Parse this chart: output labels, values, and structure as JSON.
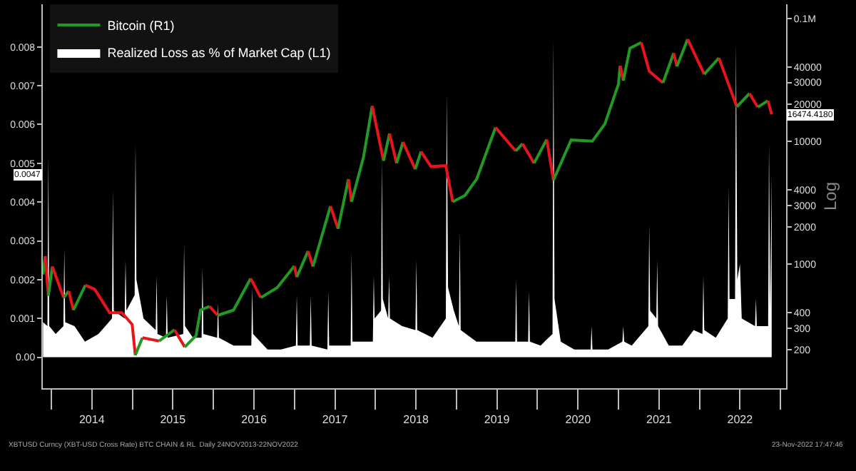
{
  "chart_data": {
    "type": "line",
    "y2label": "Log",
    "xlim": [
      "2013-11-23",
      "2023-01-26"
    ],
    "xticks": [
      {
        "value": "2014-01-01",
        "label": null
      },
      {
        "value": "2014-07-02",
        "label": "2014"
      },
      {
        "value": "2015-01-01",
        "label": null
      },
      {
        "value": "2015-07-02",
        "label": "2015"
      },
      {
        "value": "2016-01-01",
        "label": null
      },
      {
        "value": "2016-07-02",
        "label": "2016"
      },
      {
        "value": "2017-01-01",
        "label": null
      },
      {
        "value": "2017-07-02",
        "label": "2017"
      },
      {
        "value": "2018-01-01",
        "label": null
      },
      {
        "value": "2018-07-02",
        "label": "2018"
      },
      {
        "value": "2019-01-01",
        "label": null
      },
      {
        "value": "2019-07-02",
        "label": "2019"
      },
      {
        "value": "2020-01-01",
        "label": null
      },
      {
        "value": "2020-07-02",
        "label": "2020"
      },
      {
        "value": "2021-01-01",
        "label": null
      },
      {
        "value": "2021-07-02",
        "label": "2021"
      },
      {
        "value": "2022-01-01",
        "label": null
      },
      {
        "value": "2022-07-02",
        "label": "2022"
      },
      {
        "value": "2023-01-01",
        "label": null
      }
    ],
    "ylim": [
      -0.0008,
      0.0091
    ],
    "yticks": [
      {
        "value": 0,
        "label": "0.00"
      },
      0.001,
      0.002,
      0.003,
      0.004,
      0.005,
      0.006,
      0.007,
      0.008
    ],
    "y2lim": [
      97,
      130000
    ],
    "y2ticks": [
      200,
      300,
      400,
      1000,
      2000,
      3000,
      4000,
      10000,
      20000,
      30000,
      40000,
      {
        "value": 100000,
        "label": "0.1M"
      }
    ],
    "log": "y2",
    "grid": false,
    "legend": "top left",
    "series": [
      {
        "name": "Realized Loss as % of Market Cap (L1)",
        "type": "area",
        "color": "#ffffff",
        "x": [
          "2013-11-24",
          "2013-12-14",
          "2013-12-18",
          "2013-12-22",
          "2014-01-20",
          "2014-02-24",
          "2014-02-28",
          "2014-03-04",
          "2014-04-15",
          "2014-06-01",
          "2014-08-01",
          "2014-10-01",
          "2014-10-05",
          "2014-10-09",
          "2014-11-27",
          "2014-12-01",
          "2014-12-05",
          "2015-01-11",
          "2015-01-15",
          "2015-01-19",
          "2015-02-20",
          "2015-04-16",
          "2015-04-20",
          "2015-04-24",
          "2015-06-01",
          "2015-06-05",
          "2015-06-09",
          "2015-08-18",
          "2015-08-22",
          "2015-08-26",
          "2015-10-01",
          "2015-11-09",
          "2015-11-13",
          "2015-11-17",
          "2016-01-18",
          "2016-01-22",
          "2016-01-26",
          "2016-04-01",
          "2016-06-20",
          "2016-06-24",
          "2016-06-28",
          "2016-09-01",
          "2016-11-01",
          "2017-01-07",
          "2017-01-11",
          "2017-01-15",
          "2017-03-11",
          "2017-03-15",
          "2017-03-19",
          "2017-05-29",
          "2017-06-02",
          "2017-06-06",
          "2017-09-11",
          "2017-09-15",
          "2017-09-19",
          "2017-12-20",
          "2017-12-24",
          "2017-12-28",
          "2018-01-26",
          "2018-01-30",
          "2018-02-03",
          "2018-02-27",
          "2018-03-03",
          "2018-03-07",
          "2018-05-01",
          "2018-06-30",
          "2018-07-04",
          "2018-07-08",
          "2018-09-15",
          "2018-11-14",
          "2018-11-18",
          "2018-11-24",
          "2018-12-20",
          "2019-01-12",
          "2019-01-16",
          "2019-01-20",
          "2019-04-01",
          "2019-07-01",
          "2019-09-23",
          "2019-09-27",
          "2019-10-01",
          "2019-11-20",
          "2019-11-24",
          "2019-11-28",
          "2020-01-15",
          "2020-03-09",
          "2020-03-13",
          "2020-03-18",
          "2020-04-15",
          "2020-06-15",
          "2020-08-28",
          "2020-09-01",
          "2020-09-05",
          "2020-11-15",
          "2021-01-18",
          "2021-01-22",
          "2021-01-26",
          "2021-03-01",
          "2021-05-15",
          "2021-05-19",
          "2021-05-23",
          "2021-06-20",
          "2021-06-24",
          "2021-06-28",
          "2021-08-15",
          "2021-10-15",
          "2021-12-05",
          "2022-01-14",
          "2022-01-18",
          "2022-01-22",
          "2022-03-15",
          "2022-05-08",
          "2022-05-12",
          "2022-05-16",
          "2022-06-10",
          "2022-06-14",
          "2022-06-20",
          "2022-07-02",
          "2022-07-10",
          "2022-09-08",
          "2022-09-12",
          "2022-09-16",
          "2022-11-06",
          "2022-11-10",
          "2022-11-15",
          "2022-11-22"
        ],
        "values": [
          0.0009,
          0.0008,
          0.0052,
          0.0008,
          0.0006,
          0.0008,
          0.0028,
          0.0009,
          0.0008,
          0.0004,
          0.0006,
          0.001,
          0.0043,
          0.0012,
          0.001,
          0.0025,
          0.0012,
          0.0016,
          0.0055,
          0.002,
          0.001,
          0.0007,
          0.0021,
          0.0006,
          0.0005,
          0.0016,
          0.0005,
          0.0006,
          0.0029,
          0.0008,
          0.0005,
          0.0005,
          0.0023,
          0.0006,
          0.0005,
          0.0014,
          0.0005,
          0.0003,
          0.0003,
          0.0018,
          0.0006,
          0.0002,
          0.0002,
          0.0003,
          0.0016,
          0.0003,
          0.0003,
          0.0016,
          0.0003,
          0.0002,
          0.0017,
          0.0003,
          0.0003,
          0.0027,
          0.0004,
          0.0004,
          0.0021,
          0.001,
          0.0012,
          0.0051,
          0.0015,
          0.001,
          0.0021,
          0.001,
          0.0008,
          0.0007,
          0.0025,
          0.0007,
          0.0005,
          0.001,
          0.0068,
          0.0018,
          0.0012,
          0.0008,
          0.0032,
          0.0007,
          0.0004,
          0.0004,
          0.0004,
          0.002,
          0.0004,
          0.0004,
          0.0017,
          0.0004,
          0.0003,
          0.0006,
          0.0082,
          0.0015,
          0.0004,
          0.0002,
          0.0002,
          0.0008,
          0.0002,
          0.0002,
          0.0004,
          0.0008,
          0.0004,
          0.0003,
          0.0008,
          0.0034,
          0.0012,
          0.001,
          0.0025,
          0.0008,
          0.0003,
          0.0003,
          0.0007,
          0.0006,
          0.0021,
          0.0007,
          0.0005,
          0.001,
          0.0044,
          0.0015,
          0.0015,
          0.0081,
          0.002,
          0.0024,
          0.001,
          0.0008,
          0.0015,
          0.0008,
          0.0008,
          0.0055,
          0.0012,
          0.0047
        ]
      },
      {
        "name": "Bitcoin (R1)",
        "axis": "y2",
        "color": "#229922",
        "x": [
          "2013-11-24",
          "2013-12-04"
        ],
        "values": [
          820,
          1150
        ]
      },
      {
        "axis": "y2",
        "color": "#e8141a",
        "x": [
          "2013-12-04",
          "2013-12-18"
        ],
        "values": [
          1150,
          550
        ]
      },
      {
        "axis": "y2",
        "color": "#229922",
        "x": [
          "2013-12-18",
          "2014-01-05"
        ],
        "values": [
          550,
          950
        ]
      },
      {
        "axis": "y2",
        "color": "#e8141a",
        "x": [
          "2014-01-05",
          "2014-02-25"
        ],
        "values": [
          950,
          530
        ]
      },
      {
        "axis": "y2",
        "color": "#229922",
        "x": [
          "2014-02-25",
          "2014-03-20"
        ],
        "values": [
          530,
          600
        ]
      },
      {
        "axis": "y2",
        "color": "#e8141a",
        "x": [
          "2014-03-20",
          "2014-04-10"
        ],
        "values": [
          600,
          420
        ]
      },
      {
        "axis": "y2",
        "color": "#229922",
        "x": [
          "2014-04-10",
          "2014-06-03"
        ],
        "values": [
          420,
          670
        ]
      },
      {
        "axis": "y2",
        "color": "#e8141a",
        "x": [
          "2014-06-03",
          "2014-07-15",
          "2014-09-20",
          "2014-11-15",
          "2014-12-31",
          "2015-01-14"
        ],
        "values": [
          670,
          620,
          400,
          400,
          320,
          180
        ]
      },
      {
        "axis": "y2",
        "color": "#229922",
        "x": [
          "2015-01-14",
          "2015-02-15"
        ],
        "values": [
          180,
          250
        ]
      },
      {
        "axis": "y2",
        "color": "#e8141a",
        "x": [
          "2015-02-15",
          "2015-05-01"
        ],
        "values": [
          250,
          235
        ]
      },
      {
        "axis": "y2",
        "color": "#229922",
        "x": [
          "2015-05-01",
          "2015-07-10"
        ],
        "values": [
          235,
          290
        ]
      },
      {
        "axis": "y2",
        "color": "#e8141a",
        "x": [
          "2015-07-10",
          "2015-08-25"
        ],
        "values": [
          290,
          210
        ]
      },
      {
        "axis": "y2",
        "color": "#229922",
        "x": [
          "2015-08-25",
          "2015-10-15",
          "2015-11-04",
          "2015-12-15"
        ],
        "values": [
          210,
          260,
          420,
          450
        ]
      },
      {
        "axis": "y2",
        "color": "#e8141a",
        "x": [
          "2015-12-15",
          "2016-01-20"
        ],
        "values": [
          450,
          380
        ]
      },
      {
        "axis": "y2",
        "color": "#229922",
        "x": [
          "2016-01-20",
          "2016-04-01",
          "2016-06-17"
        ],
        "values": [
          380,
          420,
          760
        ]
      },
      {
        "axis": "y2",
        "color": "#e8141a",
        "x": [
          "2016-06-17",
          "2016-08-02"
        ],
        "values": [
          760,
          530
        ]
      },
      {
        "axis": "y2",
        "color": "#229922",
        "x": [
          "2016-08-02",
          "2016-10-15",
          "2016-12-31"
        ],
        "values": [
          530,
          640,
          960
        ]
      },
      {
        "axis": "y2",
        "color": "#e8141a",
        "x": [
          "2016-12-31",
          "2017-01-11"
        ],
        "values": [
          960,
          780
        ]
      },
      {
        "axis": "y2",
        "color": "#229922",
        "x": [
          "2017-01-11",
          "2017-03-03"
        ],
        "values": [
          780,
          1270
        ]
      },
      {
        "axis": "y2",
        "color": "#e8141a",
        "x": [
          "2017-03-03",
          "2017-03-25"
        ],
        "values": [
          1270,
          950
        ]
      },
      {
        "axis": "y2",
        "color": "#229922",
        "x": [
          "2017-03-25",
          "2017-06-12"
        ],
        "values": [
          950,
          2950
        ]
      },
      {
        "axis": "y2",
        "color": "#e8141a",
        "x": [
          "2017-06-12",
          "2017-07-16"
        ],
        "values": [
          2950,
          1930
        ]
      },
      {
        "axis": "y2",
        "color": "#229922",
        "x": [
          "2017-07-16",
          "2017-09-01"
        ],
        "values": [
          1930,
          4900
        ]
      },
      {
        "axis": "y2",
        "color": "#e8141a",
        "x": [
          "2017-09-01",
          "2017-09-15"
        ],
        "values": [
          4900,
          3200
        ]
      },
      {
        "axis": "y2",
        "color": "#229922",
        "x": [
          "2017-09-15",
          "2017-11-08",
          "2017-12-17"
        ],
        "values": [
          3200,
          7400,
          19300
        ]
      },
      {
        "axis": "y2",
        "color": "#e8141a",
        "x": [
          "2017-12-17",
          "2018-02-06"
        ],
        "values": [
          19300,
          6900
        ]
      },
      {
        "axis": "y2",
        "color": "#229922",
        "x": [
          "2018-02-06",
          "2018-03-05"
        ],
        "values": [
          6900,
          11500
        ]
      },
      {
        "axis": "y2",
        "color": "#e8141a",
        "x": [
          "2018-03-05",
          "2018-04-06"
        ],
        "values": [
          11500,
          6600
        ]
      },
      {
        "axis": "y2",
        "color": "#229922",
        "x": [
          "2018-04-06",
          "2018-05-05"
        ],
        "values": [
          6600,
          9800
        ]
      },
      {
        "axis": "y2",
        "color": "#e8141a",
        "x": [
          "2018-05-05",
          "2018-06-29"
        ],
        "values": [
          9800,
          5900
        ]
      },
      {
        "axis": "y2",
        "color": "#229922",
        "x": [
          "2018-06-29",
          "2018-07-25"
        ],
        "values": [
          5900,
          8200
        ]
      },
      {
        "axis": "y2",
        "color": "#e8141a",
        "x": [
          "2018-07-25",
          "2018-09-08",
          "2018-11-14",
          "2018-12-15"
        ],
        "values": [
          8200,
          6200,
          6300,
          3200
        ]
      },
      {
        "axis": "y2",
        "color": "#229922",
        "x": [
          "2018-12-15",
          "2019-02-08",
          "2019-04-02",
          "2019-06-26"
        ],
        "values": [
          3200,
          3600,
          4900,
          12900
        ]
      },
      {
        "axis": "y2",
        "color": "#e8141a",
        "x": [
          "2019-06-26",
          "2019-08-28",
          "2019-09-25"
        ],
        "values": [
          12900,
          9500,
          8300
        ]
      },
      {
        "axis": "y2",
        "color": "#229922",
        "x": [
          "2019-09-25",
          "2019-10-26"
        ],
        "values": [
          8300,
          9500
        ]
      },
      {
        "axis": "y2",
        "color": "#e8141a",
        "x": [
          "2019-10-26",
          "2019-12-17"
        ],
        "values": [
          9500,
          6600
        ]
      },
      {
        "axis": "y2",
        "color": "#229922",
        "x": [
          "2019-12-17",
          "2020-02-12"
        ],
        "values": [
          6600,
          10300
        ]
      },
      {
        "axis": "y2",
        "color": "#e8141a",
        "x": [
          "2020-02-12",
          "2020-03-13"
        ],
        "values": [
          10300,
          4800
        ]
      },
      {
        "axis": "y2",
        "color": "#229922",
        "x": [
          "2020-03-13",
          "2020-06-01",
          "2020-09-05",
          "2020-10-31",
          "2020-12-31",
          "2021-01-08"
        ],
        "values": [
          4800,
          10200,
          10000,
          13800,
          29000,
          41000
        ]
      },
      {
        "axis": "y2",
        "color": "#e8141a",
        "x": [
          "2021-01-08",
          "2021-01-22"
        ],
        "values": [
          41000,
          31000
        ]
      },
      {
        "axis": "y2",
        "color": "#229922",
        "x": [
          "2021-01-22",
          "2021-02-21",
          "2021-04-13"
        ],
        "values": [
          31000,
          57000,
          63500
        ]
      },
      {
        "axis": "y2",
        "color": "#e8141a",
        "x": [
          "2021-04-13",
          "2021-05-19",
          "2021-07-20"
        ],
        "values": [
          63500,
          37000,
          29800
        ]
      },
      {
        "axis": "y2",
        "color": "#229922",
        "x": [
          "2021-07-20",
          "2021-09-06"
        ],
        "values": [
          29800,
          52000
        ]
      },
      {
        "axis": "y2",
        "color": "#e8141a",
        "x": [
          "2021-09-06",
          "2021-09-21"
        ],
        "values": [
          52000,
          40500
        ]
      },
      {
        "axis": "y2",
        "color": "#229922",
        "x": [
          "2021-09-21",
          "2021-11-08"
        ],
        "values": [
          40500,
          67600
        ]
      },
      {
        "axis": "y2",
        "color": "#e8141a",
        "x": [
          "2021-11-08",
          "2022-01-22"
        ],
        "values": [
          67600,
          35000
        ]
      },
      {
        "axis": "y2",
        "color": "#229922",
        "x": [
          "2022-01-22",
          "2022-03-29"
        ],
        "values": [
          35000,
          47500
        ]
      },
      {
        "axis": "y2",
        "color": "#e8141a",
        "x": [
          "2022-03-29",
          "2022-05-12",
          "2022-06-18"
        ],
        "values": [
          47500,
          28900,
          19000
        ]
      },
      {
        "axis": "y2",
        "color": "#229922",
        "x": [
          "2022-06-18",
          "2022-08-14"
        ],
        "values": [
          19000,
          24400
        ]
      },
      {
        "axis": "y2",
        "color": "#e8141a",
        "x": [
          "2022-08-14",
          "2022-09-20"
        ],
        "values": [
          24400,
          18900
        ]
      },
      {
        "axis": "y2",
        "color": "#229922",
        "x": [
          "2022-09-20",
          "2022-11-05"
        ],
        "values": [
          18900,
          21300
        ]
      },
      {
        "axis": "y2",
        "color": "#e8141a",
        "x": [
          "2022-11-05",
          "2022-11-22"
        ],
        "values": [
          21300,
          16474.418
        ]
      }
    ],
    "annotations": [
      "0.0047",
      "16474.4180",
      "XBTUSD Curncy (XBT-USD Cross Rate) BTC CHAIN & RL  Daily 24NOV2013-22NOV2022",
      "23-Nov-2022 17:47:46"
    ]
  }
}
